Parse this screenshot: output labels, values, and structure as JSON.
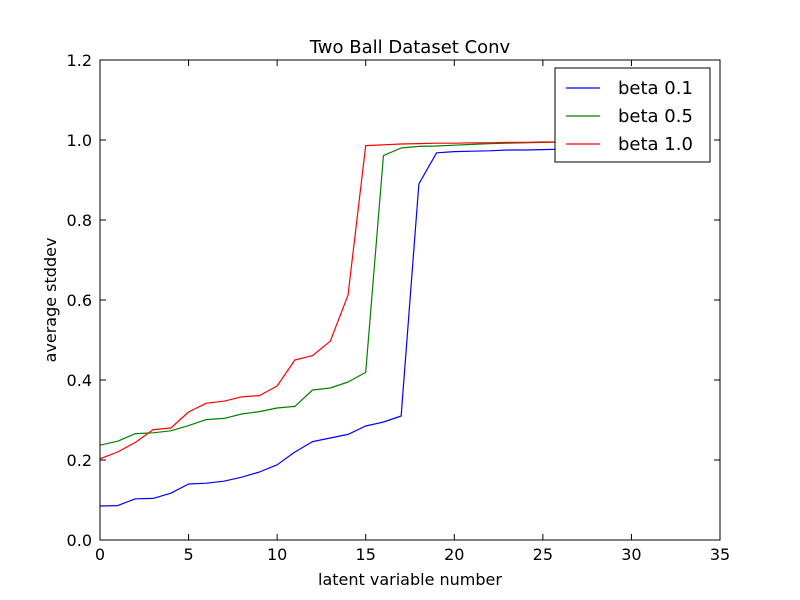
{
  "chart_data": {
    "type": "line",
    "title": "Two Ball Dataset Conv",
    "xlabel": "latent variable number",
    "ylabel": "average stddev",
    "xlim": [
      0,
      35
    ],
    "ylim": [
      0.0,
      1.2
    ],
    "xticks": [
      0,
      5,
      10,
      15,
      20,
      25,
      30,
      35
    ],
    "xtick_labels": [
      "0",
      "5",
      "10",
      "15",
      "20",
      "25",
      "30",
      "35"
    ],
    "yticks": [
      0.0,
      0.2,
      0.4,
      0.6,
      0.8,
      1.0,
      1.2
    ],
    "ytick_labels": [
      "0.0",
      "0.2",
      "0.4",
      "0.6",
      "0.8",
      "1.0",
      "1.2"
    ],
    "grid": false,
    "legend_position": "top-right",
    "x": [
      0,
      1,
      2,
      3,
      4,
      5,
      6,
      7,
      8,
      9,
      10,
      11,
      12,
      13,
      14,
      15,
      16,
      17,
      18,
      19,
      20,
      21,
      22,
      23,
      24,
      25,
      26,
      27,
      28,
      29,
      30,
      31
    ],
    "series": [
      {
        "name": "beta 0.1",
        "color": "#0000ff",
        "values": [
          0.085,
          0.086,
          0.103,
          0.104,
          0.117,
          0.14,
          0.142,
          0.147,
          0.157,
          0.17,
          0.188,
          0.22,
          0.246,
          0.255,
          0.264,
          0.285,
          0.295,
          0.31,
          0.89,
          0.968,
          0.971,
          0.972,
          0.973,
          0.975,
          0.975,
          0.976,
          0.977,
          0.978,
          0.98,
          0.982,
          0.985,
          0.987
        ]
      },
      {
        "name": "beta 0.5",
        "color": "#008000",
        "values": [
          0.237,
          0.247,
          0.266,
          0.268,
          0.273,
          0.286,
          0.301,
          0.304,
          0.315,
          0.321,
          0.33,
          0.334,
          0.375,
          0.38,
          0.395,
          0.419,
          0.961,
          0.98,
          0.984,
          0.985,
          0.987,
          0.989,
          0.991,
          0.992,
          0.993,
          0.994,
          0.995,
          0.996,
          0.996,
          0.997,
          0.997,
          0.998
        ]
      },
      {
        "name": "beta 1.0",
        "color": "#ff0000",
        "values": [
          0.203,
          0.22,
          0.244,
          0.276,
          0.28,
          0.32,
          0.342,
          0.347,
          0.358,
          0.361,
          0.385,
          0.45,
          0.461,
          0.497,
          0.612,
          0.986,
          0.988,
          0.99,
          0.991,
          0.992,
          0.992,
          0.993,
          0.993,
          0.994,
          0.994,
          0.995,
          0.995,
          0.996,
          0.996,
          0.997,
          0.997,
          0.998
        ]
      }
    ]
  }
}
